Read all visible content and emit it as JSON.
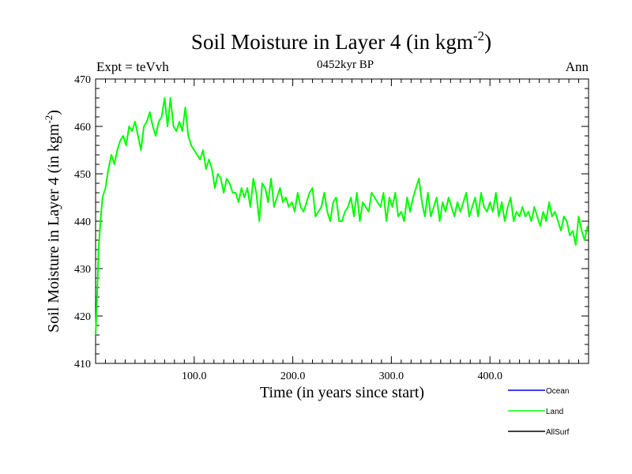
{
  "chart_data": {
    "type": "line",
    "title": "Soil Moisture in Layer 4 (in kgm",
    "title_sup": "-2",
    "title_close": ")",
    "subtitle": "0452kyr BP",
    "left_label": "Expt = teVvh",
    "right_label": "Ann",
    "xlabel": "Time (in years since start)",
    "ylabel": "Soil Moisture in Layer 4 (in kgm",
    "ylabel_sup": "-2",
    "ylabel_close": ")",
    "xlim": [
      0,
      500
    ],
    "ylim": [
      410,
      470
    ],
    "x_ticks": [
      100,
      200,
      300,
      400
    ],
    "x_tick_labels": [
      "100.0",
      "200.0",
      "300.0",
      "400.0"
    ],
    "y_ticks": [
      410,
      420,
      430,
      440,
      450,
      460,
      470
    ],
    "y_tick_labels": [
      "410",
      "420",
      "430",
      "440",
      "450",
      "460",
      "470"
    ],
    "legend": [
      {
        "name": "Ocean",
        "color": "#0000ff"
      },
      {
        "name": "Land",
        "color": "#00ff00"
      },
      {
        "name": "AllSurf",
        "color": "#000000"
      }
    ],
    "series": [
      {
        "name": "Land",
        "color": "#00ff00",
        "x": [
          0,
          1,
          2,
          3,
          5,
          7,
          10,
          13,
          16,
          19,
          22,
          25,
          28,
          31,
          34,
          37,
          40,
          43,
          46,
          49,
          52,
          55,
          58,
          61,
          64,
          67,
          70,
          73,
          76,
          79,
          82,
          85,
          88,
          91,
          94,
          97,
          100,
          103,
          106,
          109,
          112,
          115,
          118,
          121,
          124,
          127,
          130,
          133,
          136,
          139,
          142,
          145,
          148,
          151,
          154,
          157,
          160,
          163,
          166,
          169,
          172,
          175,
          178,
          181,
          184,
          187,
          190,
          193,
          196,
          199,
          202,
          205,
          208,
          211,
          214,
          217,
          220,
          223,
          226,
          229,
          232,
          235,
          238,
          241,
          244,
          247,
          250,
          253,
          256,
          259,
          262,
          265,
          268,
          271,
          274,
          277,
          280,
          283,
          286,
          289,
          292,
          295,
          298,
          301,
          304,
          307,
          310,
          313,
          316,
          319,
          322,
          325,
          328,
          331,
          334,
          337,
          340,
          343,
          346,
          349,
          352,
          355,
          358,
          361,
          364,
          367,
          370,
          373,
          376,
          379,
          382,
          385,
          388,
          391,
          394,
          397,
          400,
          403,
          406,
          409,
          412,
          415,
          418,
          421,
          424,
          427,
          430,
          433,
          436,
          439,
          442,
          445,
          448,
          451,
          454,
          457,
          460,
          463,
          466,
          469,
          472,
          475,
          478,
          481,
          484,
          487,
          490,
          493,
          496,
          499
        ],
        "y": [
          416,
          421,
          427,
          434,
          440,
          445,
          447,
          451,
          454,
          452,
          455,
          457,
          458,
          456,
          460,
          459,
          461,
          458,
          455,
          460,
          461,
          463,
          460,
          458,
          461,
          462,
          466,
          460,
          466,
          460,
          459,
          461,
          459,
          464,
          458,
          456,
          455,
          454,
          453,
          455,
          451,
          453,
          451,
          447,
          450,
          449,
          446,
          449,
          448,
          446,
          446,
          444,
          447,
          445,
          447,
          443,
          449,
          446,
          440,
          448,
          447,
          444,
          449,
          443,
          445,
          447,
          444,
          445,
          443,
          444,
          442,
          446,
          443,
          442,
          444,
          446,
          447,
          441,
          442,
          443,
          446,
          442,
          440,
          444,
          445,
          440,
          440,
          442,
          443,
          445,
          441,
          446,
          440,
          444,
          443,
          442,
          446,
          445,
          444,
          443,
          446,
          440,
          445,
          443,
          446,
          441,
          442,
          440,
          445,
          442,
          445,
          447,
          449,
          444,
          441,
          446,
          441,
          443,
          445,
          440,
          444,
          442,
          445,
          443,
          441,
          444,
          442,
          444,
          446,
          441,
          443,
          445,
          441,
          446,
          443,
          442,
          444,
          442,
          446,
          441,
          444,
          440,
          443,
          445,
          440,
          442,
          441,
          443,
          441,
          442,
          440,
          443,
          441,
          439,
          442,
          440,
          444,
          441,
          442,
          440,
          438,
          441,
          440,
          437,
          438,
          435,
          441,
          438,
          436,
          439
        ]
      }
    ]
  }
}
